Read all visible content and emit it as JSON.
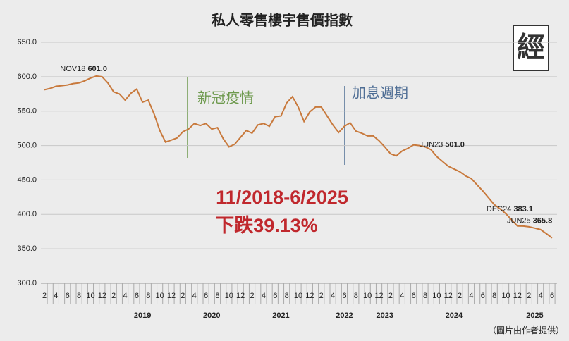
{
  "chart_data": {
    "type": "line",
    "title": "私人零售樓宇售價指數",
    "logo": "經",
    "source": "（圖片由作者提供）",
    "headline": "11/2018-6/2025",
    "subheadline": "下跌39.13%",
    "events": [
      "新冠疫情",
      "加息週期"
    ],
    "color": "#c8793c",
    "grid": true,
    "ylim": [
      300,
      650
    ],
    "yticks": [
      {
        "value": 300,
        "label": "300.0"
      },
      {
        "value": 350,
        "label": "350.0"
      },
      {
        "value": 400,
        "label": "400.0"
      },
      {
        "value": 450,
        "label": "450.0"
      },
      {
        "value": 500,
        "label": "500.0"
      },
      {
        "value": 550,
        "label": "550.0"
      },
      {
        "value": 600,
        "label": "600.0"
      },
      {
        "value": 650,
        "label": "650.0"
      }
    ],
    "categories": [
      "2",
      null,
      "4",
      null,
      "6",
      null,
      "8",
      null,
      "10",
      null,
      "12",
      null,
      "2",
      null,
      "4",
      null,
      "6",
      null,
      "8",
      null,
      "10",
      null,
      "12",
      null,
      "2",
      null,
      "4",
      null,
      "6",
      null,
      "8",
      null,
      "10",
      null,
      "12",
      null,
      "2",
      null,
      "4",
      null,
      "6",
      null,
      "8",
      null,
      "10",
      null,
      "12",
      null,
      "2",
      null,
      "4",
      null,
      "6",
      null,
      "8",
      null,
      "10",
      null,
      "12",
      null,
      "2",
      null,
      "4",
      null,
      "6",
      null,
      "8",
      null,
      "10",
      null,
      "12",
      null,
      "2",
      null,
      "4",
      null,
      "6",
      null,
      "8",
      null,
      "10",
      null,
      "12",
      null,
      "2",
      null,
      "4",
      null,
      "6"
    ],
    "x_groups": [
      null,
      null,
      null,
      null,
      null,
      null,
      null,
      null,
      null,
      null,
      null,
      null,
      null,
      null,
      null,
      null,
      null,
      "2019",
      null,
      null,
      null,
      null,
      null,
      null,
      null,
      null,
      null,
      null,
      null,
      "2020",
      null,
      null,
      null,
      null,
      null,
      null,
      null,
      null,
      null,
      null,
      null,
      "2021",
      null,
      null,
      null,
      null,
      null,
      null,
      null,
      null,
      null,
      null,
      "2022",
      null,
      null,
      null,
      null,
      null,
      null,
      "2023",
      null,
      null,
      null,
      null,
      null,
      null,
      null,
      null,
      null,
      null,
      null,
      "2024",
      null,
      null,
      null,
      null,
      null,
      null,
      null,
      null,
      null,
      null,
      null,
      null,
      null,
      "2025",
      null,
      null,
      null
    ],
    "values": [
      581,
      583,
      586,
      587,
      588,
      590,
      591,
      594,
      598,
      601,
      600,
      591,
      578,
      575,
      566,
      576,
      582,
      563,
      566,
      546,
      522,
      505,
      508,
      511,
      520,
      524,
      532,
      529,
      532,
      524,
      526,
      510,
      498,
      502,
      512,
      522,
      518,
      530,
      532,
      528,
      542,
      543,
      562,
      571,
      556,
      535,
      549,
      556,
      556,
      543,
      530,
      519,
      528,
      533,
      521,
      518,
      514,
      514,
      507,
      498,
      488,
      485,
      492,
      496,
      501,
      500,
      498,
      494,
      484,
      477,
      470,
      466,
      462,
      456,
      452,
      443,
      434,
      424,
      414,
      408,
      401,
      392,
      383.1,
      383,
      382,
      380,
      378,
      372,
      365.8
    ],
    "point_labels": [
      null,
      null,
      null,
      null,
      null,
      null,
      null,
      null,
      null,
      "NOV18",
      null,
      null,
      null,
      null,
      null,
      null,
      null,
      null,
      null,
      null,
      null,
      null,
      null,
      null,
      null,
      null,
      null,
      null,
      null,
      null,
      null,
      null,
      null,
      null,
      null,
      null,
      null,
      null,
      null,
      null,
      null,
      null,
      null,
      null,
      null,
      null,
      null,
      null,
      null,
      null,
      null,
      null,
      null,
      null,
      null,
      null,
      null,
      null,
      null,
      null,
      null,
      null,
      null,
      null,
      "JUN23",
      null,
      null,
      null,
      null,
      null,
      null,
      null,
      null,
      null,
      null,
      null,
      null,
      null,
      null,
      null,
      null,
      null,
      "DEC24",
      null,
      null,
      null,
      null,
      null,
      "JUN25"
    ],
    "value_labels": [
      null,
      null,
      null,
      null,
      null,
      null,
      null,
      null,
      null,
      "601.0",
      null,
      null,
      null,
      null,
      null,
      null,
      null,
      null,
      null,
      null,
      null,
      null,
      null,
      null,
      null,
      null,
      null,
      null,
      null,
      null,
      null,
      null,
      null,
      null,
      null,
      null,
      null,
      null,
      null,
      null,
      null,
      null,
      null,
      null,
      null,
      null,
      null,
      null,
      null,
      null,
      null,
      null,
      null,
      null,
      null,
      null,
      null,
      null,
      null,
      null,
      null,
      null,
      null,
      null,
      "501.0",
      null,
      null,
      null,
      null,
      null,
      null,
      null,
      null,
      null,
      null,
      null,
      null,
      null,
      null,
      null,
      null,
      null,
      "383.1",
      null,
      null,
      null,
      null,
      null,
      "365.8"
    ]
  }
}
